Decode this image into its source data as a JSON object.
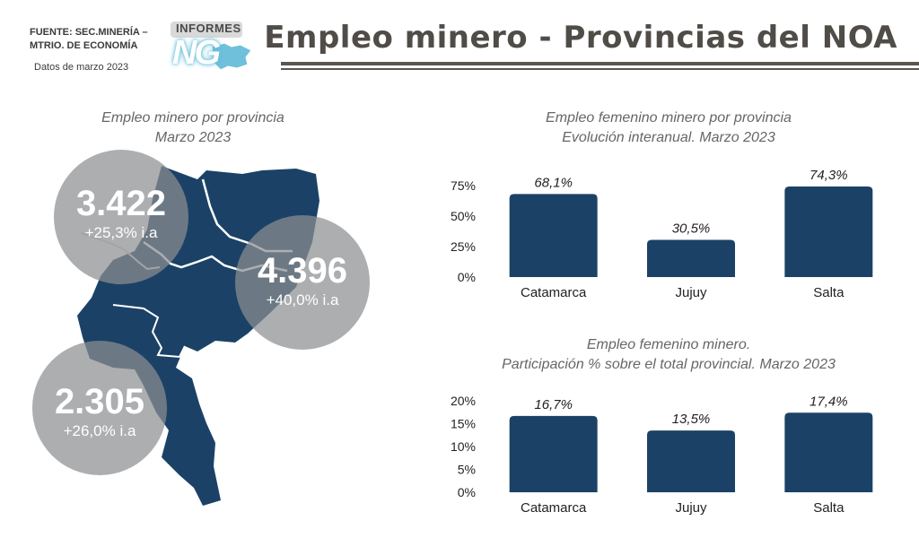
{
  "header": {
    "source_line1": "FUENTE: SEC.MINERÍA –",
    "source_line2": "MTRIO. DE ECONOMÍA",
    "date": "Datos de  marzo 2023",
    "logo_top": "INFORMES",
    "logo_mark": "NG",
    "title": "Empleo minero - Provincias del NOA"
  },
  "left_panel": {
    "title_line1": "Empleo minero por provincia",
    "title_line2": "Marzo 2023",
    "bubbles": [
      {
        "value": "3.422",
        "change": "+25,3% i.a"
      },
      {
        "value": "4.396",
        "change": "+40,0% i.a"
      },
      {
        "value": "2.305",
        "change": "+26,0% i.a"
      }
    ],
    "map_color": "#1b4266",
    "bubble_color": "#8c8f92"
  },
  "chart_data": [
    {
      "type": "bar",
      "title_line1": "Empleo femenino minero por provincia",
      "title_line2": "Evolución interanual. Marzo 2023",
      "categories": [
        "Catamarca",
        "Jujuy",
        "Salta"
      ],
      "values": [
        68.1,
        30.5,
        74.3
      ],
      "value_labels": [
        "68,1%",
        "30,5%",
        "74,3%"
      ],
      "yticks": [
        0,
        25,
        50,
        75
      ],
      "ytick_labels": [
        "0%",
        "25%",
        "50%",
        "75%"
      ],
      "ylim": [
        0,
        75
      ],
      "color": "#1b4266"
    },
    {
      "type": "bar",
      "title_line1": "Empleo femenino minero.",
      "title_line2": "Participación % sobre el total provincial. Marzo 2023",
      "categories": [
        "Catamarca",
        "Jujuy",
        "Salta"
      ],
      "values": [
        16.7,
        13.5,
        17.4
      ],
      "value_labels": [
        "16,7%",
        "13,5%",
        "17,4%"
      ],
      "yticks": [
        0,
        5,
        10,
        15,
        20
      ],
      "ytick_labels": [
        "0%",
        "5%",
        "10%",
        "15%",
        "20%"
      ],
      "ylim": [
        0,
        20
      ],
      "color": "#1b4266"
    }
  ]
}
